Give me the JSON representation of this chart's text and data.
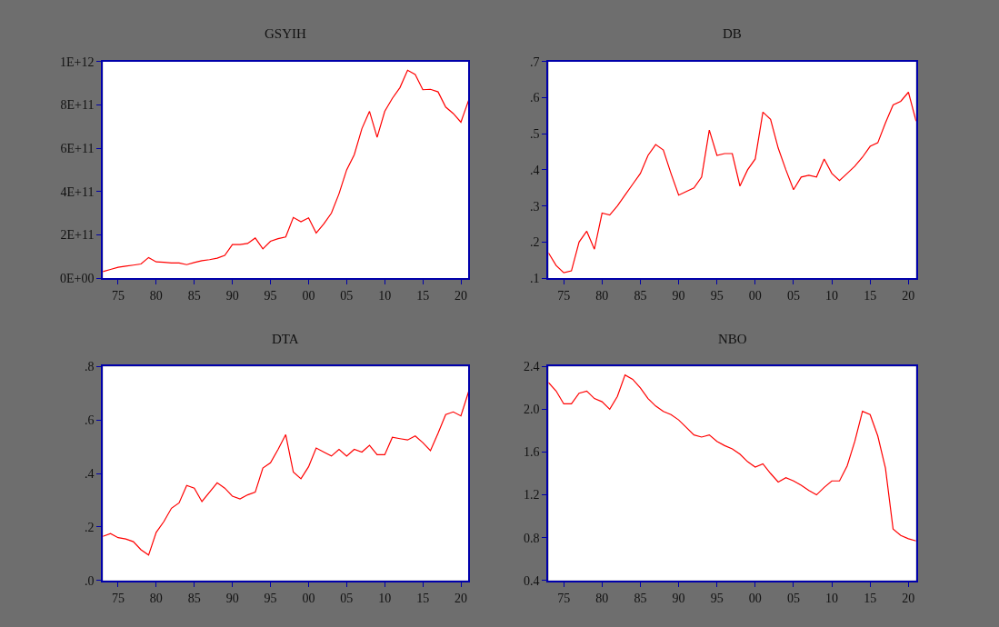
{
  "chart_data": [
    {
      "type": "line",
      "title": "GSYIH",
      "x": [
        1973,
        1974,
        1975,
        1976,
        1977,
        1978,
        1979,
        1980,
        1981,
        1982,
        1983,
        1984,
        1985,
        1986,
        1987,
        1988,
        1989,
        1990,
        1991,
        1992,
        1993,
        1994,
        1995,
        1996,
        1997,
        1998,
        1999,
        2000,
        2001,
        2002,
        2003,
        2004,
        2005,
        2006,
        2007,
        2008,
        2009,
        2010,
        2011,
        2012,
        2013,
        2014,
        2015,
        2016,
        2017,
        2018,
        2019,
        2020,
        2021
      ],
      "series": [
        {
          "color": "#ff0000",
          "values": [
            30000000000.0,
            40000000000.0,
            50000000000.0,
            55000000000.0,
            60000000000.0,
            65000000000.0,
            95000000000.0,
            75000000000.0,
            73000000000.0,
            70000000000.0,
            70000000000.0,
            62000000000.0,
            72000000000.0,
            80000000000.0,
            85000000000.0,
            92000000000.0,
            105000000000.0,
            155000000000.0,
            155000000000.0,
            160000000000.0,
            185000000000.0,
            135000000000.0,
            170000000000.0,
            182000000000.0,
            190000000000.0,
            280000000000.0,
            260000000000.0,
            278000000000.0,
            208000000000.0,
            250000000000.0,
            300000000000.0,
            390000000000.0,
            500000000000.0,
            570000000000.0,
            690000000000.0,
            770000000000.0,
            650000000000.0,
            770000000000.0,
            830000000000.0,
            880000000000.0,
            960000000000.0,
            940000000000.0,
            870000000000.0,
            872000000000.0,
            860000000000.0,
            790000000000.0,
            760000000000.0,
            720000000000.0,
            820000000000.0
          ]
        }
      ],
      "xlim": [
        1973,
        2021
      ],
      "xticks": [
        {
          "value": 1975,
          "label": "75"
        },
        {
          "value": 1980,
          "label": "80"
        },
        {
          "value": 1985,
          "label": "85"
        },
        {
          "value": 1990,
          "label": "90"
        },
        {
          "value": 1995,
          "label": "95"
        },
        {
          "value": 2000,
          "label": "00"
        },
        {
          "value": 2005,
          "label": "05"
        },
        {
          "value": 2010,
          "label": "10"
        },
        {
          "value": 2015,
          "label": "15"
        },
        {
          "value": 2020,
          "label": "20"
        }
      ],
      "ylim": [
        0,
        1000000000000.0
      ],
      "yticks": [
        {
          "value": 0,
          "label": "0E+00"
        },
        {
          "value": 200000000000.0,
          "label": "2E+11"
        },
        {
          "value": 400000000000.0,
          "label": "4E+11"
        },
        {
          "value": 600000000000.0,
          "label": "6E+11"
        },
        {
          "value": 800000000000.0,
          "label": "8E+11"
        },
        {
          "value": 1000000000000.0,
          "label": "1E+12"
        }
      ],
      "grid": false
    },
    {
      "type": "line",
      "title": "DB",
      "x": [
        1973,
        1974,
        1975,
        1976,
        1977,
        1978,
        1979,
        1980,
        1981,
        1982,
        1983,
        1984,
        1985,
        1986,
        1987,
        1988,
        1989,
        1990,
        1991,
        1992,
        1993,
        1994,
        1995,
        1996,
        1997,
        1998,
        1999,
        2000,
        2001,
        2002,
        2003,
        2004,
        2005,
        2006,
        2007,
        2008,
        2009,
        2010,
        2011,
        2012,
        2013,
        2014,
        2015,
        2016,
        2017,
        2018,
        2019,
        2020,
        2021
      ],
      "series": [
        {
          "color": "#ff0000",
          "values": [
            0.17,
            0.135,
            0.115,
            0.12,
            0.2,
            0.23,
            0.18,
            0.28,
            0.275,
            0.3,
            0.33,
            0.36,
            0.39,
            0.44,
            0.47,
            0.455,
            0.39,
            0.33,
            0.34,
            0.35,
            0.38,
            0.51,
            0.44,
            0.445,
            0.445,
            0.355,
            0.4,
            0.43,
            0.56,
            0.54,
            0.46,
            0.4,
            0.345,
            0.38,
            0.385,
            0.38,
            0.43,
            0.39,
            0.37,
            0.39,
            0.41,
            0.435,
            0.465,
            0.475,
            0.53,
            0.58,
            0.59,
            0.615,
            0.535
          ]
        }
      ],
      "xlim": [
        1973,
        2021
      ],
      "xticks": [
        {
          "value": 1975,
          "label": "75"
        },
        {
          "value": 1980,
          "label": "80"
        },
        {
          "value": 1985,
          "label": "85"
        },
        {
          "value": 1990,
          "label": "90"
        },
        {
          "value": 1995,
          "label": "95"
        },
        {
          "value": 2000,
          "label": "00"
        },
        {
          "value": 2005,
          "label": "05"
        },
        {
          "value": 2010,
          "label": "10"
        },
        {
          "value": 2015,
          "label": "15"
        },
        {
          "value": 2020,
          "label": "20"
        }
      ],
      "ylim": [
        0.1,
        0.7
      ],
      "yticks": [
        {
          "value": 0.1,
          "label": ".1"
        },
        {
          "value": 0.2,
          "label": ".2"
        },
        {
          "value": 0.3,
          "label": ".3"
        },
        {
          "value": 0.4,
          "label": ".4"
        },
        {
          "value": 0.5,
          "label": ".5"
        },
        {
          "value": 0.6,
          "label": ".6"
        },
        {
          "value": 0.7,
          "label": ".7"
        }
      ],
      "grid": false
    },
    {
      "type": "line",
      "title": "DTA",
      "x": [
        1973,
        1974,
        1975,
        1976,
        1977,
        1978,
        1979,
        1980,
        1981,
        1982,
        1983,
        1984,
        1985,
        1986,
        1987,
        1988,
        1989,
        1990,
        1991,
        1992,
        1993,
        1994,
        1995,
        1996,
        1997,
        1998,
        1999,
        2000,
        2001,
        2002,
        2003,
        2004,
        2005,
        2006,
        2007,
        2008,
        2009,
        2010,
        2011,
        2012,
        2013,
        2014,
        2015,
        2016,
        2017,
        2018,
        2019,
        2020,
        2021
      ],
      "series": [
        {
          "color": "#ff0000",
          "values": [
            0.165,
            0.175,
            0.16,
            0.155,
            0.145,
            0.115,
            0.095,
            0.18,
            0.22,
            0.27,
            0.29,
            0.355,
            0.345,
            0.295,
            0.33,
            0.365,
            0.345,
            0.315,
            0.305,
            0.32,
            0.33,
            0.42,
            0.44,
            0.49,
            0.545,
            0.405,
            0.38,
            0.425,
            0.495,
            0.48,
            0.465,
            0.49,
            0.465,
            0.49,
            0.48,
            0.505,
            0.47,
            0.47,
            0.535,
            0.53,
            0.525,
            0.54,
            0.515,
            0.485,
            0.55,
            0.62,
            0.63,
            0.615,
            0.705
          ]
        }
      ],
      "xlim": [
        1973,
        2021
      ],
      "xticks": [
        {
          "value": 1975,
          "label": "75"
        },
        {
          "value": 1980,
          "label": "80"
        },
        {
          "value": 1985,
          "label": "85"
        },
        {
          "value": 1990,
          "label": "90"
        },
        {
          "value": 1995,
          "label": "95"
        },
        {
          "value": 2000,
          "label": "00"
        },
        {
          "value": 2005,
          "label": "05"
        },
        {
          "value": 2010,
          "label": "10"
        },
        {
          "value": 2015,
          "label": "15"
        },
        {
          "value": 2020,
          "label": "20"
        }
      ],
      "ylim": [
        0,
        0.8
      ],
      "yticks": [
        {
          "value": 0,
          "label": ".0"
        },
        {
          "value": 0.2,
          "label": ".2"
        },
        {
          "value": 0.4,
          "label": ".4"
        },
        {
          "value": 0.6,
          "label": ".6"
        },
        {
          "value": 0.8,
          "label": ".8"
        }
      ],
      "grid": false
    },
    {
      "type": "line",
      "title": "NBO",
      "x": [
        1973,
        1974,
        1975,
        1976,
        1977,
        1978,
        1979,
        1980,
        1981,
        1982,
        1983,
        1984,
        1985,
        1986,
        1987,
        1988,
        1989,
        1990,
        1991,
        1992,
        1993,
        1994,
        1995,
        1996,
        1997,
        1998,
        1999,
        2000,
        2001,
        2002,
        2003,
        2004,
        2005,
        2006,
        2007,
        2008,
        2009,
        2010,
        2011,
        2012,
        2013,
        2014,
        2015,
        2016,
        2017,
        2018,
        2019,
        2020,
        2021
      ],
      "series": [
        {
          "color": "#ff0000",
          "values": [
            2.25,
            2.17,
            2.05,
            2.05,
            2.15,
            2.17,
            2.1,
            2.07,
            2.0,
            2.12,
            2.32,
            2.28,
            2.2,
            2.1,
            2.03,
            1.98,
            1.95,
            1.9,
            1.83,
            1.76,
            1.74,
            1.76,
            1.7,
            1.66,
            1.63,
            1.58,
            1.51,
            1.46,
            1.49,
            1.4,
            1.32,
            1.36,
            1.33,
            1.29,
            1.24,
            1.2,
            1.27,
            1.33,
            1.33,
            1.47,
            1.7,
            1.98,
            1.95,
            1.75,
            1.45,
            0.88,
            0.82,
            0.79,
            0.77
          ]
        }
      ],
      "xlim": [
        1973,
        2021
      ],
      "xticks": [
        {
          "value": 1975,
          "label": "75"
        },
        {
          "value": 1980,
          "label": "80"
        },
        {
          "value": 1985,
          "label": "85"
        },
        {
          "value": 1990,
          "label": "90"
        },
        {
          "value": 1995,
          "label": "95"
        },
        {
          "value": 2000,
          "label": "00"
        },
        {
          "value": 2005,
          "label": "05"
        },
        {
          "value": 2010,
          "label": "10"
        },
        {
          "value": 2015,
          "label": "15"
        },
        {
          "value": 2020,
          "label": "20"
        }
      ],
      "ylim": [
        0.4,
        2.4
      ],
      "yticks": [
        {
          "value": 0.4,
          "label": "0.4"
        },
        {
          "value": 0.8,
          "label": "0.8"
        },
        {
          "value": 1.2,
          "label": "1.2"
        },
        {
          "value": 1.6,
          "label": "1.6"
        },
        {
          "value": 2.0,
          "label": "2.0"
        },
        {
          "value": 2.4,
          "label": "2.4"
        }
      ],
      "grid": false
    }
  ]
}
